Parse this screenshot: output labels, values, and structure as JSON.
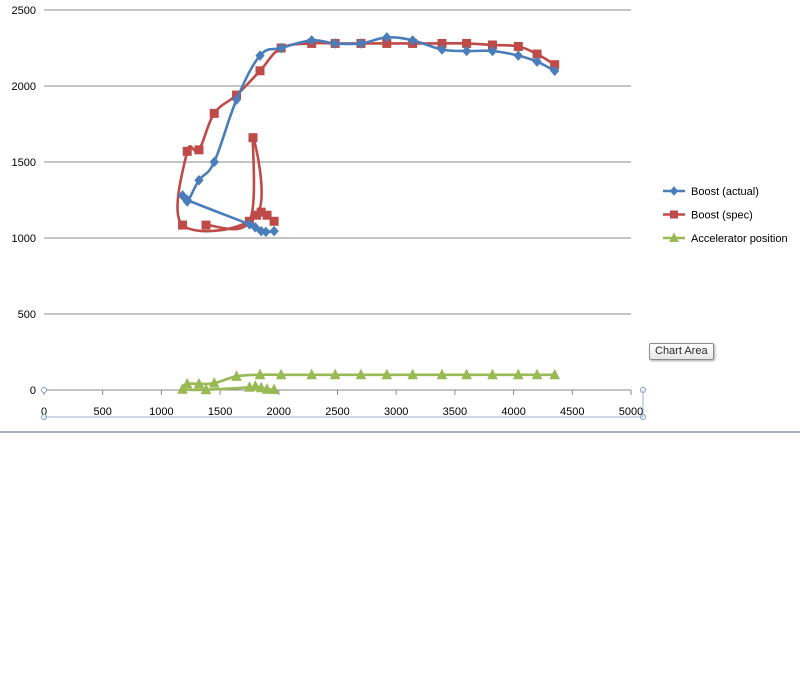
{
  "chart_data": {
    "type": "scatter",
    "title": "",
    "xlabel": "",
    "ylabel": "",
    "xlim": [
      0,
      5000
    ],
    "ylim": [
      0,
      2500
    ],
    "x_ticks": [
      "0",
      "500",
      "1000",
      "1500",
      "2000",
      "2500",
      "3000",
      "3500",
      "4000",
      "4500",
      "5000"
    ],
    "y_ticks": [
      "0",
      "500",
      "1000",
      "1500",
      "2000",
      "2500"
    ],
    "grid": "horizontal",
    "smooth_lines": true,
    "legend_position": "right",
    "series": [
      {
        "name": "Boost (actual)",
        "color": "#4a7ebb",
        "marker": "diamond",
        "x": [
          1960,
          1890,
          1850,
          1800,
          1750,
          1220,
          1180,
          1220,
          1320,
          1450,
          1640,
          1840,
          2020,
          2280,
          2480,
          2700,
          2920,
          3140,
          3390,
          3600,
          3820,
          4040,
          4200,
          4350
        ],
        "y": [
          1045,
          1040,
          1045,
          1070,
          1090,
          1250,
          1280,
          1240,
          1380,
          1500,
          1910,
          2200,
          2250,
          2300,
          2280,
          2280,
          2320,
          2300,
          2240,
          2230,
          2230,
          2200,
          2160,
          2100
        ]
      },
      {
        "name": "Boost (spec)",
        "color": "#be4b48",
        "marker": "square",
        "x": [
          1380,
          1750,
          1780,
          1810,
          1180,
          1220,
          1320,
          1450,
          1640,
          1840,
          2020,
          2280,
          2480,
          2700,
          2920,
          3140,
          3390,
          3600,
          3820,
          4040,
          4200,
          4350
        ],
        "y": [
          1085,
          1110,
          1660,
          1150,
          1085,
          1570,
          1580,
          1820,
          1940,
          2100,
          2250,
          2280,
          2280,
          2280,
          2280,
          2280,
          2280,
          2280,
          2270,
          2260,
          2210,
          2140
        ],
        "extra_points": {
          "x": [
            1850,
            1900,
            1960
          ],
          "y": [
            1170,
            1150,
            1110
          ]
        }
      },
      {
        "name": "Accelerator position",
        "color": "#98b954",
        "marker": "triangle",
        "x": [
          1960,
          1900,
          1850,
          1800,
          1750,
          1380,
          1180,
          1220,
          1320,
          1450,
          1640,
          1840,
          2020,
          2280,
          2480,
          2700,
          2920,
          3140,
          3390,
          3600,
          3820,
          4040,
          4200,
          4350
        ],
        "y": [
          3,
          5,
          15,
          25,
          18,
          2,
          5,
          40,
          40,
          45,
          90,
          100,
          100,
          100,
          100,
          100,
          100,
          100,
          100,
          100,
          100,
          100,
          100,
          100
        ]
      }
    ]
  },
  "tooltip": {
    "label": "Chart Area"
  }
}
